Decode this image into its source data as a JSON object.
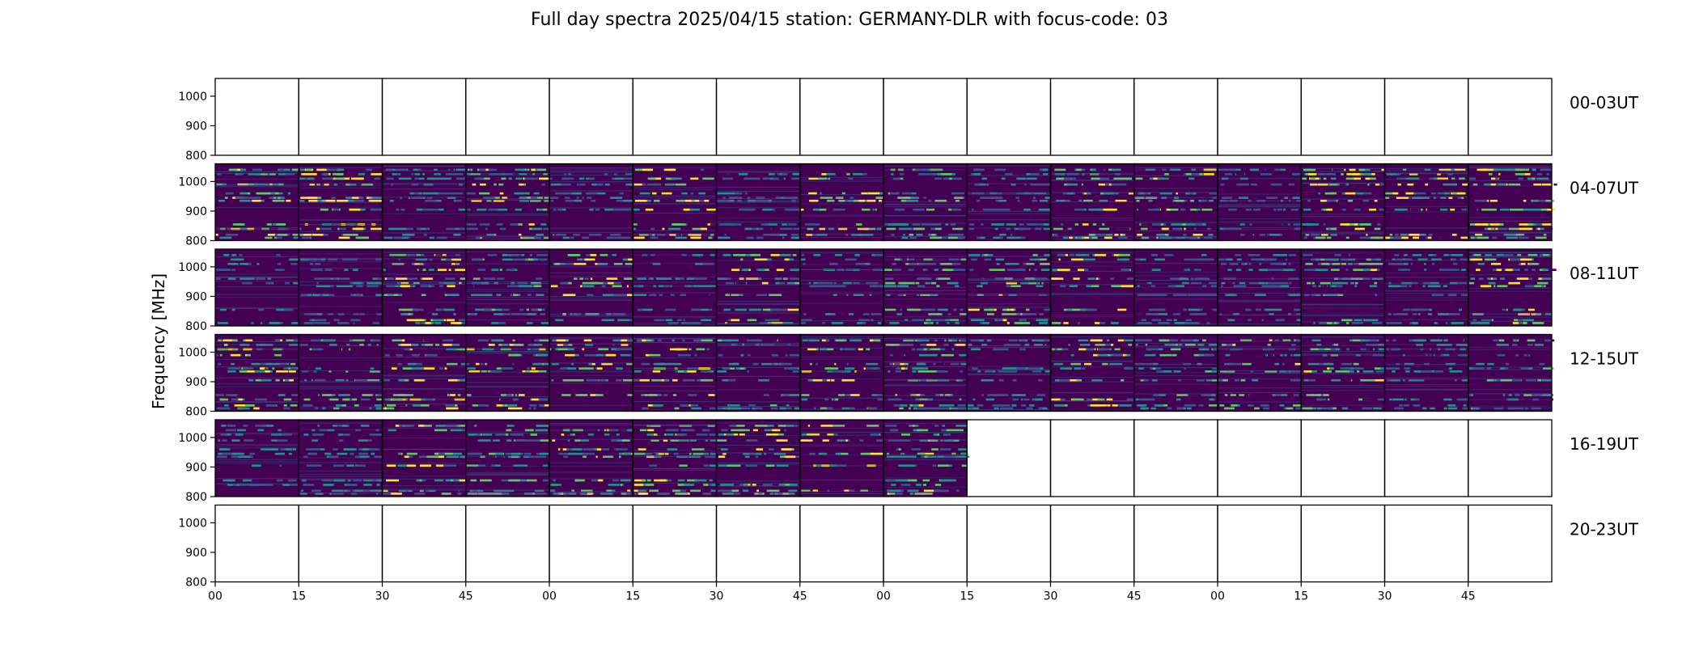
{
  "chart_data": {
    "type": "heatmap",
    "title": "Full day spectra 2025/04/15 station: GERMANY-DLR with focus-code: 03",
    "ylabel": "Frequency [MHz]",
    "ylim": [
      800,
      1060
    ],
    "yticks": [
      800,
      900,
      1000
    ],
    "xticks": [
      "00",
      "15",
      "30",
      "45",
      "00",
      "15",
      "30",
      "45",
      "00",
      "15",
      "30",
      "45",
      "00",
      "15",
      "30",
      "45"
    ],
    "panels_per_row": 16,
    "colormap": [
      "#440154",
      "#3b528b",
      "#21918c",
      "#5ec962",
      "#fde725"
    ],
    "rows": [
      {
        "label": "00-03UT",
        "filled_panels": 0
      },
      {
        "label": "04-07UT",
        "filled_panels": 16
      },
      {
        "label": "08-11UT",
        "filled_panels": 16
      },
      {
        "label": "12-15UT",
        "filled_panels": 16
      },
      {
        "label": "16-19UT",
        "filled_panels": 9
      },
      {
        "label": "20-23UT",
        "filled_panels": 0
      }
    ],
    "persistent_bands_mhz": [
      1040,
      1025,
      1010,
      990,
      960,
      945,
      935,
      905,
      855,
      840,
      820,
      810
    ],
    "grid": false
  }
}
